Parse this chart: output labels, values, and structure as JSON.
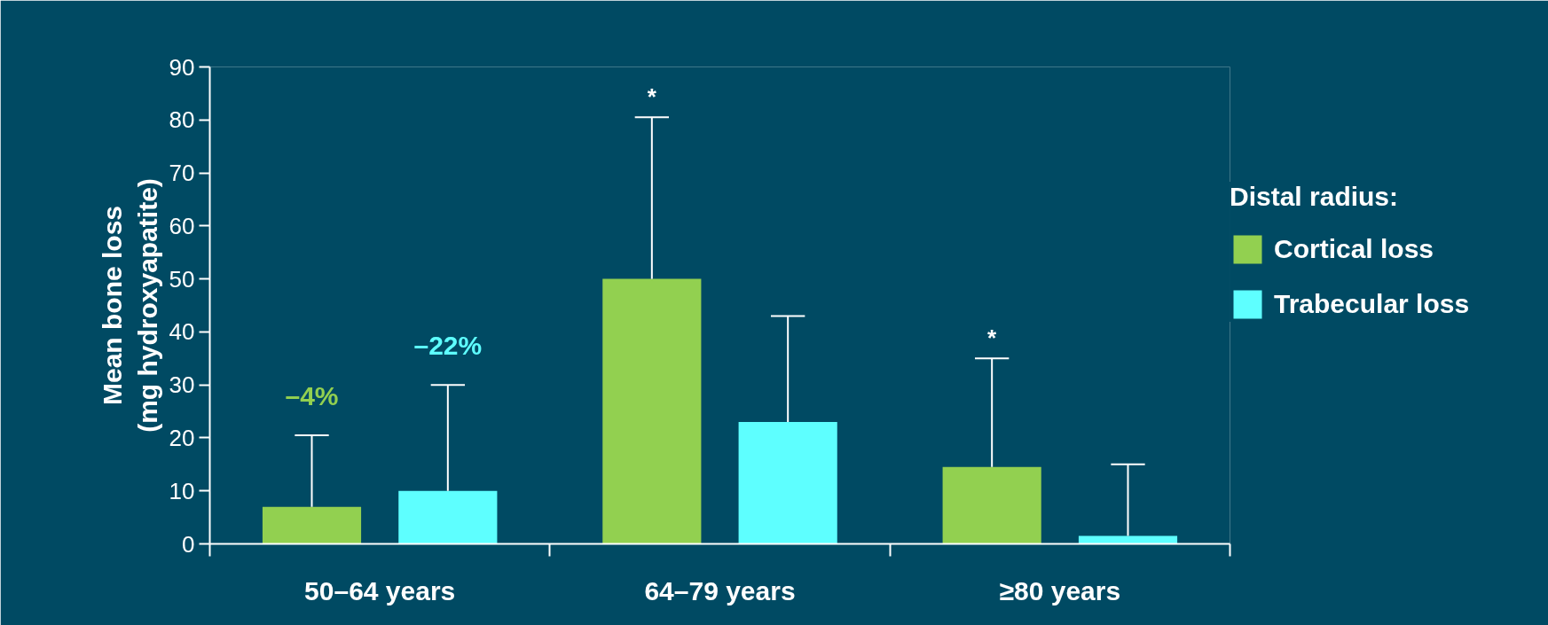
{
  "chart_data": {
    "type": "bar",
    "ylabel": "Mean bone loss\n(mg hydroxyapatite)",
    "legend_title": "Distal radius:",
    "categories": [
      "50–64 years",
      "64–79 years",
      "≥80 years"
    ],
    "series": [
      {
        "name": "Cortical loss",
        "color": "#92d050",
        "values": [
          7,
          50,
          14.5
        ],
        "errors": [
          [
            7,
            20.5
          ],
          [
            50,
            80.5
          ],
          [
            14.5,
            35
          ]
        ]
      },
      {
        "name": "Trabecular loss",
        "color": "#5effff",
        "values": [
          10,
          23,
          1.5
        ],
        "errors": [
          [
            10,
            30
          ],
          [
            23,
            43
          ],
          [
            1.5,
            15
          ]
        ]
      }
    ],
    "ylim": [
      0,
      90
    ],
    "yticks": [
      0,
      10,
      20,
      30,
      40,
      50,
      60,
      70,
      80,
      90
    ],
    "legend": "right",
    "annotations": [
      "–4%",
      "–22%",
      "*",
      "*"
    ]
  }
}
